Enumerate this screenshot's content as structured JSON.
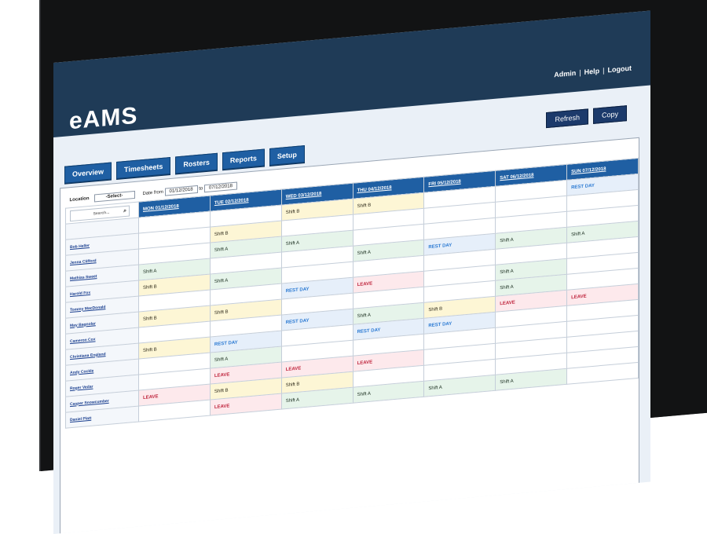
{
  "app": {
    "title": "eAMS"
  },
  "top_links": [
    "Admin",
    "Help",
    "Logout"
  ],
  "tabs": [
    "Overview",
    "Timesheets",
    "Rosters",
    "Reports",
    "Setup"
  ],
  "actions": {
    "refresh": "Refresh",
    "copy": "Copy"
  },
  "filters": {
    "location_label": "Location",
    "location_value": "-Select-",
    "date_from_label": "Date from",
    "date_from": "01/12/2018",
    "to_label": "to",
    "date_to": "07/12/2018"
  },
  "search": {
    "placeholder": "Search..."
  },
  "days": [
    "MON   01/12/2018",
    "TUE   02/12/2018",
    "WED   03/12/2018",
    "THU   04/12/2018",
    "FRI   05/12/2018",
    "SAT   06/12/2018",
    "SUN   07/12/2018"
  ],
  "employees": [
    {
      "name": "",
      "shifts": [
        "",
        "",
        "Shift B",
        "Shift B",
        "",
        "",
        "REST DAY"
      ]
    },
    {
      "name": "Bob Heller",
      "shifts": [
        "",
        "Shift B",
        "",
        "",
        "",
        "",
        ""
      ]
    },
    {
      "name": "Jenna Clifford",
      "shifts": [
        "",
        "Shift A",
        "Shift A",
        "",
        "",
        "",
        ""
      ]
    },
    {
      "name": "Mathias Sweet",
      "shifts": [
        "Shift A",
        "",
        "",
        "Shift A",
        "REST DAY",
        "Shift A",
        "Shift A"
      ]
    },
    {
      "name": "Harold Fox",
      "shifts": [
        "Shift B",
        "Shift A",
        "",
        "",
        "",
        "",
        ""
      ]
    },
    {
      "name": "Tommy MacDonald",
      "shifts": [
        "",
        "",
        "REST DAY",
        "LEAVE",
        "",
        "Shift A",
        ""
      ]
    },
    {
      "name": "May Bagnolar",
      "shifts": [
        "Shift B",
        "Shift B",
        "",
        "",
        "",
        "Shift A",
        ""
      ]
    },
    {
      "name": "Cameron Cox",
      "shifts": [
        "",
        "",
        "REST DAY",
        "Shift A",
        "Shift B",
        "LEAVE",
        "LEAVE"
      ]
    },
    {
      "name": "Christiana England",
      "shifts": [
        "Shift B",
        "REST DAY",
        "",
        "REST DAY",
        "REST DAY",
        "",
        ""
      ]
    },
    {
      "name": "Andy Cockle",
      "shifts": [
        "",
        "Shift A",
        "",
        "",
        "",
        "",
        ""
      ]
    },
    {
      "name": "Roger Vedar",
      "shifts": [
        "",
        "LEAVE",
        "LEAVE",
        "LEAVE",
        "",
        "",
        ""
      ]
    },
    {
      "name": "Casper Snowcumber",
      "shifts": [
        "LEAVE",
        "Shift B",
        "Shift B",
        "",
        "",
        "",
        ""
      ]
    },
    {
      "name": "Daniel Platt",
      "shifts": [
        "",
        "LEAVE",
        "Shift A",
        "Shift A",
        "Shift A",
        "Shift A",
        ""
      ]
    }
  ]
}
